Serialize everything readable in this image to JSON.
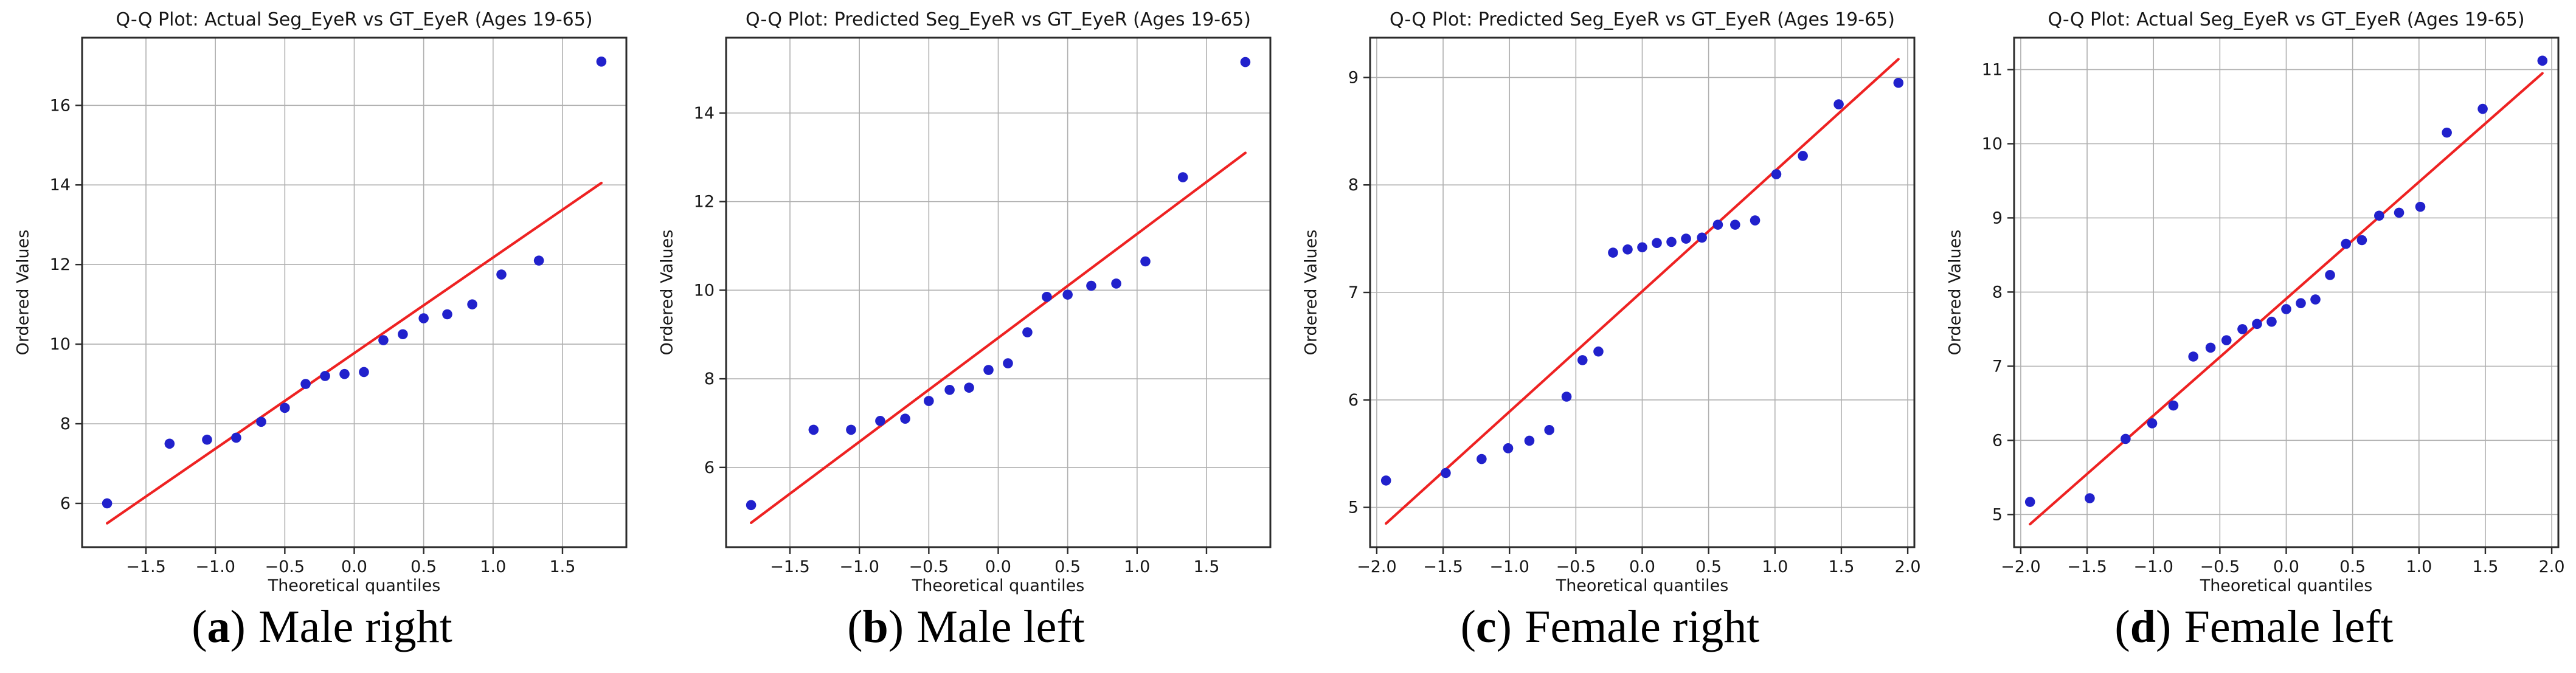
{
  "styles": {
    "background": "#ffffff",
    "dot_color": "#2121cc",
    "line_color": "#ee2222",
    "grid_color": "#b0b0b0",
    "frame_color": "#2b2b2b",
    "text_color": "#171717"
  },
  "chart_data": [
    {
      "type": "scatter",
      "title": "Q-Q Plot: Actual Seg_EyeR vs GT_EyeR (Ages 19-65)",
      "xlabel": "Theoretical quantiles",
      "ylabel": "Ordered Values",
      "caption": {
        "open": "(",
        "letter": "a",
        "close": ")",
        "label": "Male right"
      },
      "xlim": [
        -1.96,
        1.96
      ],
      "ylim": [
        4.9,
        17.7
      ],
      "xticks": [
        -1.5,
        -1.0,
        -0.5,
        0.0,
        0.5,
        1.0,
        1.5
      ],
      "xtick_labels": [
        "−1.5",
        "−1.0",
        "−0.5",
        "0.0",
        "0.5",
        "1.0",
        "1.5"
      ],
      "yticks": [
        6,
        8,
        10,
        12,
        14,
        16
      ],
      "ytick_labels": [
        "6",
        "8",
        "10",
        "12",
        "14",
        "16"
      ],
      "grid": true,
      "legend": null,
      "points": {
        "x": [
          -1.78,
          -1.33,
          -1.06,
          -0.85,
          -0.67,
          -0.5,
          -0.35,
          -0.21,
          -0.07,
          0.07,
          0.21,
          0.35,
          0.5,
          0.67,
          0.85,
          1.06,
          1.33,
          1.78
        ],
        "y": [
          6.0,
          7.5,
          7.6,
          7.65,
          8.05,
          8.4,
          9.0,
          9.2,
          9.25,
          9.3,
          10.1,
          10.25,
          10.65,
          10.75,
          11.0,
          11.75,
          12.1,
          17.1
        ]
      },
      "fit_line": {
        "x": [
          -1.78,
          1.78
        ],
        "y": [
          5.5,
          14.05
        ]
      }
    },
    {
      "type": "scatter",
      "title": "Q-Q Plot: Predicted Seg_EyeR vs GT_EyeR (Ages 19-65)",
      "xlabel": "Theoretical quantiles",
      "ylabel": "Ordered Values",
      "caption": {
        "open": "(",
        "letter": "b",
        "close": ")",
        "label": "Male left"
      },
      "xlim": [
        -1.96,
        1.96
      ],
      "ylim": [
        4.2,
        15.7
      ],
      "xticks": [
        -1.5,
        -1.0,
        -0.5,
        0.0,
        0.5,
        1.0,
        1.5
      ],
      "xtick_labels": [
        "−1.5",
        "−1.0",
        "−0.5",
        "0.0",
        "0.5",
        "1.0",
        "1.5"
      ],
      "yticks": [
        6,
        8,
        10,
        12,
        14
      ],
      "ytick_labels": [
        "6",
        "8",
        "10",
        "12",
        "14"
      ],
      "grid": true,
      "legend": null,
      "points": {
        "x": [
          -1.78,
          -1.33,
          -1.06,
          -0.85,
          -0.67,
          -0.5,
          -0.35,
          -0.21,
          -0.07,
          0.07,
          0.21,
          0.35,
          0.5,
          0.67,
          0.85,
          1.06,
          1.33,
          1.78
        ],
        "y": [
          5.15,
          6.85,
          6.85,
          7.05,
          7.1,
          7.5,
          7.75,
          7.8,
          8.2,
          8.35,
          9.05,
          9.85,
          9.9,
          10.1,
          10.15,
          10.65,
          12.55,
          15.15
        ]
      },
      "fit_line": {
        "x": [
          -1.78,
          1.78
        ],
        "y": [
          4.75,
          13.1
        ]
      }
    },
    {
      "type": "scatter",
      "title": "Q-Q Plot: Predicted Seg_EyeR vs GT_EyeR (Ages 19-65)",
      "xlabel": "Theoretical quantiles",
      "ylabel": "Ordered Values",
      "caption": {
        "open": "(",
        "letter": "c",
        "close": ")",
        "label": "Female right"
      },
      "xlim": [
        -2.05,
        2.05
      ],
      "ylim": [
        4.63,
        9.37
      ],
      "xticks": [
        -2.0,
        -1.5,
        -1.0,
        -0.5,
        0.0,
        0.5,
        1.0,
        1.5,
        2.0
      ],
      "xtick_labels": [
        "−2.0",
        "−1.5",
        "−1.0",
        "−0.5",
        "0.0",
        "0.5",
        "1.0",
        "1.5",
        "2.0"
      ],
      "yticks": [
        5,
        6,
        7,
        8,
        9
      ],
      "ytick_labels": [
        "5",
        "6",
        "7",
        "8",
        "9"
      ],
      "grid": true,
      "legend": null,
      "points": {
        "x": [
          -1.93,
          -1.48,
          -1.21,
          -1.01,
          -0.85,
          -0.7,
          -0.57,
          -0.45,
          -0.33,
          -0.22,
          -0.11,
          0.0,
          0.11,
          0.22,
          0.33,
          0.45,
          0.57,
          0.7,
          0.85,
          1.01,
          1.21,
          1.48,
          1.93
        ],
        "y": [
          5.25,
          5.32,
          5.45,
          5.55,
          5.62,
          5.72,
          6.03,
          6.37,
          6.45,
          7.37,
          7.4,
          7.42,
          7.46,
          7.47,
          7.5,
          7.51,
          7.63,
          7.63,
          7.67,
          8.1,
          8.27,
          8.75,
          8.95
        ]
      },
      "fit_line": {
        "x": [
          -1.93,
          1.93
        ],
        "y": [
          4.85,
          9.17
        ]
      }
    },
    {
      "type": "scatter",
      "title": "Q-Q Plot: Actual Seg_EyeR vs GT_EyeR (Ages 19-65)",
      "xlabel": "Theoretical quantiles",
      "ylabel": "Ordered Values",
      "caption": {
        "open": "(",
        "letter": "d",
        "close": ")",
        "label": "Female left"
      },
      "xlim": [
        -2.05,
        2.05
      ],
      "ylim": [
        4.56,
        11.43
      ],
      "xticks": [
        -2.0,
        -1.5,
        -1.0,
        -0.5,
        0.0,
        0.5,
        1.0,
        1.5,
        2.0
      ],
      "xtick_labels": [
        "−2.0",
        "−1.5",
        "−1.0",
        "−0.5",
        "0.0",
        "0.5",
        "1.0",
        "1.5",
        "2.0"
      ],
      "yticks": [
        5,
        6,
        7,
        8,
        9,
        10,
        11
      ],
      "ytick_labels": [
        "5",
        "6",
        "7",
        "8",
        "9",
        "10",
        "11"
      ],
      "grid": true,
      "legend": null,
      "points": {
        "x": [
          -1.93,
          -1.48,
          -1.21,
          -1.01,
          -0.85,
          -0.7,
          -0.57,
          -0.45,
          -0.33,
          -0.22,
          -0.11,
          0.0,
          0.11,
          0.22,
          0.33,
          0.45,
          0.57,
          0.7,
          0.85,
          1.01,
          1.21,
          1.48,
          1.93
        ],
        "y": [
          5.17,
          5.22,
          6.02,
          6.23,
          6.47,
          7.13,
          7.25,
          7.35,
          7.5,
          7.57,
          7.6,
          7.77,
          7.85,
          7.9,
          8.23,
          8.65,
          8.7,
          9.03,
          9.07,
          9.15,
          10.15,
          10.47,
          11.12
        ]
      },
      "fit_line": {
        "x": [
          -1.93,
          1.93
        ],
        "y": [
          4.87,
          10.95
        ]
      }
    }
  ]
}
